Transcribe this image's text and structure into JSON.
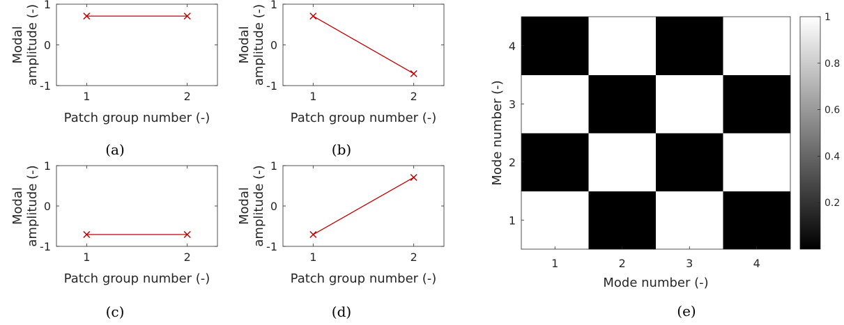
{
  "colors": {
    "series": "#c00000",
    "axis": "#262626",
    "black": "#000000",
    "white": "#ffffff"
  },
  "chart_data": [
    {
      "type": "line",
      "caption": "(a)",
      "xlabel": "Patch group number (-)",
      "ylabel": [
        "Modal",
        "amplitude (-)"
      ],
      "x": [
        1,
        2
      ],
      "xticks": [
        "1",
        "2"
      ],
      "yticks": [
        "-1",
        "0",
        "1"
      ],
      "xlim": [
        0.7,
        2.3
      ],
      "ylim": [
        -1,
        1
      ],
      "series": [
        {
          "values": [
            0.707,
            0.707
          ],
          "marker": "x"
        }
      ]
    },
    {
      "type": "line",
      "caption": "(b)",
      "xlabel": "Patch group number (-)",
      "ylabel": [
        "Modal",
        "amplitude (-)"
      ],
      "x": [
        1,
        2
      ],
      "xticks": [
        "1",
        "2"
      ],
      "yticks": [
        "-1",
        "0",
        "1"
      ],
      "xlim": [
        0.7,
        2.3
      ],
      "ylim": [
        -1,
        1
      ],
      "series": [
        {
          "values": [
            0.707,
            -0.707
          ],
          "marker": "x"
        }
      ]
    },
    {
      "type": "line",
      "caption": "(c)",
      "xlabel": "Patch group number (-)",
      "ylabel": [
        "Modal",
        "amplitude (-)"
      ],
      "x": [
        1,
        2
      ],
      "xticks": [
        "1",
        "2"
      ],
      "yticks": [
        "-1",
        "0",
        "1"
      ],
      "xlim": [
        0.7,
        2.3
      ],
      "ylim": [
        -1,
        1
      ],
      "series": [
        {
          "values": [
            -0.707,
            -0.707
          ],
          "marker": "x"
        }
      ]
    },
    {
      "type": "line",
      "caption": "(d)",
      "xlabel": "Patch group number (-)",
      "ylabel": [
        "Modal",
        "amplitude (-)"
      ],
      "x": [
        1,
        2
      ],
      "xticks": [
        "1",
        "2"
      ],
      "yticks": [
        "-1",
        "0",
        "1"
      ],
      "xlim": [
        0.7,
        2.3
      ],
      "ylim": [
        -1,
        1
      ],
      "series": [
        {
          "values": [
            -0.707,
            0.707
          ],
          "marker": "x"
        }
      ]
    },
    {
      "type": "heatmap",
      "caption": "(e)",
      "xlabel": "Mode number (-)",
      "ylabel": "Mode number (-)",
      "x": [
        "1",
        "2",
        "3",
        "4"
      ],
      "y": [
        "1",
        "2",
        "3",
        "4"
      ],
      "values": [
        [
          1,
          0,
          1,
          0
        ],
        [
          0,
          1,
          0,
          1
        ],
        [
          1,
          0,
          1,
          0
        ],
        [
          0,
          1,
          0,
          1
        ]
      ],
      "colorbar": {
        "ticks": [
          "0.2",
          "0.4",
          "0.6",
          "0.8",
          "1"
        ],
        "tick_values": [
          0.2,
          0.4,
          0.6,
          0.8,
          1
        ],
        "range": [
          0,
          1
        ],
        "colormap": "gray"
      }
    }
  ]
}
